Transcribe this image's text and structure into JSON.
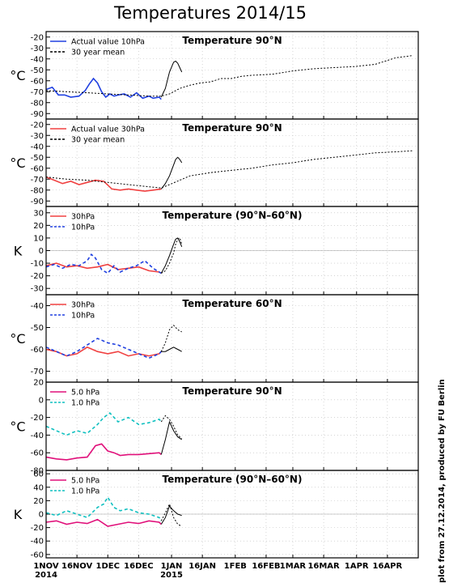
{
  "title": "Temperatures 2014/15",
  "credit": "plot from 27.12.2014, produced by FU Berlin",
  "x_ticks": [
    {
      "label": "1NOV",
      "day": 0
    },
    {
      "label": "16NOV",
      "day": 15
    },
    {
      "label": "1DEC",
      "day": 30
    },
    {
      "label": "16DEC",
      "day": 45
    },
    {
      "label": "1JAN",
      "day": 61
    },
    {
      "label": "16JAN",
      "day": 76
    },
    {
      "label": "1FEB",
      "day": 92
    },
    {
      "label": "16FEB",
      "day": 107
    },
    {
      "label": "1MAR",
      "day": 120
    },
    {
      "label": "16MAR",
      "day": 135
    },
    {
      "label": "1APR",
      "day": 151
    },
    {
      "label": "16APR",
      "day": 166
    }
  ],
  "x_year_labels": [
    {
      "label": "2014",
      "day": 0
    },
    {
      "label": "2015",
      "day": 61
    }
  ],
  "colors": {
    "blue": "#2040e0",
    "red": "#f04040",
    "magenta": "#e0107a",
    "cyan": "#10c0c0",
    "black": "#000000"
  },
  "chart_data": [
    {
      "type": "line",
      "title": "Temperature 90°N",
      "ylabel": "°C",
      "ylim": [
        -95,
        -15
      ],
      "yticks": [
        -90,
        -80,
        -70,
        -60,
        -50,
        -40,
        -30,
        -20
      ],
      "series": [
        {
          "name": "Actual value 10hPa",
          "color": "blue",
          "dash": "solid",
          "x": [
            0,
            3,
            6,
            9,
            12,
            16,
            19,
            21,
            23,
            25,
            27,
            29,
            31,
            33,
            35,
            38,
            41,
            44,
            47,
            50,
            52,
            55,
            56
          ],
          "y": [
            -68,
            -66,
            -73,
            -73,
            -75,
            -74,
            -69,
            -63,
            -58,
            -62,
            -70,
            -75,
            -72,
            -74,
            -73,
            -72,
            -75,
            -71,
            -76,
            -74,
            -76,
            -75,
            -77
          ]
        },
        {
          "name": "",
          "color": "black",
          "dash": "solid",
          "x": [
            56,
            58,
            60,
            62,
            63,
            64,
            65,
            66
          ],
          "y": [
            -75,
            -67,
            -52,
            -43,
            -42,
            -44,
            -48,
            -52
          ]
        },
        {
          "name": "30 year mean",
          "color": "black",
          "dash": "dashed",
          "x": [
            0,
            10,
            20,
            30,
            40,
            50,
            56,
            60,
            65,
            70,
            75,
            80,
            85,
            90,
            95,
            100,
            110,
            120,
            130,
            140,
            150,
            160,
            170,
            178
          ],
          "y": [
            -69,
            -70,
            -71,
            -72,
            -73,
            -74,
            -74,
            -72,
            -67,
            -64,
            -62,
            -61,
            -58,
            -58,
            -56,
            -55,
            -54,
            -51,
            -49,
            -48,
            -47,
            -45,
            -39,
            -37
          ]
        }
      ]
    },
    {
      "type": "line",
      "title": "Temperature 90°N",
      "ylabel": "°C",
      "ylim": [
        -95,
        -15
      ],
      "yticks": [
        -90,
        -80,
        -70,
        -60,
        -50,
        -40,
        -30,
        -20
      ],
      "series": [
        {
          "name": "Actual value 30hPa",
          "color": "red",
          "dash": "solid",
          "x": [
            0,
            4,
            8,
            12,
            16,
            20,
            24,
            28,
            32,
            36,
            40,
            44,
            48,
            52,
            56
          ],
          "y": [
            -68,
            -71,
            -74,
            -72,
            -75,
            -73,
            -71,
            -72,
            -79,
            -80,
            -79,
            -80,
            -81,
            -80,
            -79
          ]
        },
        {
          "name": "",
          "color": "black",
          "dash": "solid",
          "x": [
            56,
            58,
            60,
            62,
            63,
            64,
            65,
            66
          ],
          "y": [
            -79,
            -74,
            -67,
            -57,
            -52,
            -50,
            -52,
            -55
          ]
        },
        {
          "name": "30 year mean",
          "color": "black",
          "dash": "dashed",
          "x": [
            0,
            10,
            20,
            30,
            40,
            50,
            56,
            60,
            70,
            80,
            90,
            100,
            110,
            120,
            130,
            140,
            150,
            160,
            170,
            178
          ],
          "y": [
            -68,
            -70,
            -71,
            -73,
            -75,
            -77,
            -78,
            -75,
            -67,
            -64,
            -62,
            -60,
            -57,
            -55,
            -52,
            -50,
            -48,
            -46,
            -45,
            -44
          ]
        }
      ]
    },
    {
      "type": "line",
      "title": "Temperature (90°N–60°N)",
      "ylabel": "K",
      "ylim": [
        -35,
        35
      ],
      "yticks": [
        -30,
        -20,
        -10,
        0,
        10,
        20,
        30
      ],
      "zero_line": true,
      "series": [
        {
          "name": "30hPa",
          "color": "red",
          "dash": "solid",
          "x": [
            0,
            5,
            10,
            15,
            20,
            25,
            30,
            35,
            40,
            45,
            50,
            55,
            56
          ],
          "y": [
            -12,
            -10,
            -13,
            -12,
            -14,
            -13,
            -11,
            -15,
            -14,
            -13,
            -16,
            -17,
            -18
          ]
        },
        {
          "name": "10hPa",
          "color": "blue",
          "dash": "dashed",
          "x": [
            0,
            4,
            8,
            12,
            16,
            20,
            22,
            24,
            27,
            30,
            33,
            36,
            40,
            44,
            48,
            52,
            56
          ],
          "y": [
            -13,
            -11,
            -14,
            -11,
            -12,
            -8,
            -3,
            -6,
            -15,
            -18,
            -12,
            -17,
            -14,
            -12,
            -8,
            -14,
            -18
          ]
        },
        {
          "name": "",
          "color": "black",
          "dash": "solid",
          "x": [
            56,
            58,
            60,
            62,
            63,
            64,
            65,
            66
          ],
          "y": [
            -18,
            -12,
            -4,
            5,
            9,
            10,
            7,
            3
          ]
        },
        {
          "name": "",
          "color": "black",
          "dash": "dashed",
          "x": [
            56,
            58,
            60,
            62,
            63,
            64,
            65,
            66
          ],
          "y": [
            -18,
            -16,
            -10,
            -2,
            5,
            9,
            10,
            5
          ]
        }
      ]
    },
    {
      "type": "line",
      "title": "Temperature 60°N",
      "ylabel": "°C",
      "ylim": [
        -75,
        -35
      ],
      "yticks": [
        -70,
        -60,
        -50,
        -40
      ],
      "series": [
        {
          "name": "30hPa",
          "color": "red",
          "dash": "solid",
          "x": [
            0,
            5,
            10,
            15,
            20,
            25,
            30,
            35,
            40,
            45,
            50,
            55,
            56
          ],
          "y": [
            -60,
            -61,
            -63,
            -62,
            -59,
            -61,
            -62,
            -61,
            -63,
            -62,
            -63,
            -62,
            -61
          ]
        },
        {
          "name": "10hPa",
          "color": "blue",
          "dash": "dashed",
          "x": [
            0,
            5,
            10,
            15,
            20,
            25,
            30,
            35,
            40,
            45,
            50,
            55,
            56
          ],
          "y": [
            -59,
            -61,
            -63,
            -61,
            -58,
            -55,
            -57,
            -58,
            -60,
            -62,
            -64,
            -62,
            -61
          ]
        },
        {
          "name": "",
          "color": "black",
          "dash": "solid",
          "x": [
            56,
            58,
            60,
            62,
            64,
            66
          ],
          "y": [
            -61,
            -61,
            -60,
            -59,
            -60,
            -61
          ]
        },
        {
          "name": "",
          "color": "black",
          "dash": "dashed",
          "x": [
            56,
            58,
            60,
            62,
            64,
            66
          ],
          "y": [
            -61,
            -57,
            -51,
            -49,
            -51,
            -52
          ]
        }
      ]
    },
    {
      "type": "line",
      "title": "Temperature 90°N",
      "ylabel": "°C",
      "ylim": [
        -80,
        20
      ],
      "yticks": [
        -80,
        -60,
        -40,
        -20,
        0,
        20
      ],
      "series": [
        {
          "name": "5.0 hPa",
          "color": "magenta",
          "dash": "solid",
          "x": [
            0,
            5,
            10,
            15,
            20,
            24,
            27,
            30,
            33,
            36,
            40,
            45,
            50,
            55,
            56
          ],
          "y": [
            -65,
            -67,
            -68,
            -66,
            -65,
            -52,
            -50,
            -58,
            -60,
            -63,
            -62,
            -62,
            -61,
            -60,
            -62
          ]
        },
        {
          "name": "1.0 hPa",
          "color": "cyan",
          "dash": "dashed",
          "x": [
            0,
            5,
            10,
            15,
            20,
            25,
            28,
            31,
            35,
            40,
            45,
            50,
            55,
            56
          ],
          "y": [
            -30,
            -35,
            -40,
            -35,
            -38,
            -28,
            -20,
            -15,
            -25,
            -20,
            -28,
            -26,
            -22,
            -25
          ]
        },
        {
          "name": "",
          "color": "black",
          "dash": "solid",
          "x": [
            56,
            58,
            60,
            62,
            64,
            66
          ],
          "y": [
            -62,
            -45,
            -25,
            -35,
            -42,
            -45
          ]
        },
        {
          "name": "",
          "color": "black",
          "dash": "dashed",
          "x": [
            56,
            58,
            60,
            62,
            64,
            66
          ],
          "y": [
            -25,
            -18,
            -22,
            -30,
            -40,
            -44
          ]
        }
      ]
    },
    {
      "type": "line",
      "title": "Temperature (90°N–60°N)",
      "ylabel": "K",
      "ylim": [
        -65,
        65
      ],
      "yticks": [
        -60,
        -40,
        -20,
        0,
        20,
        40,
        60
      ],
      "zero_line": true,
      "series": [
        {
          "name": "5.0 hPa",
          "color": "magenta",
          "dash": "solid",
          "x": [
            0,
            5,
            10,
            15,
            20,
            25,
            30,
            35,
            40,
            45,
            50,
            55,
            56
          ],
          "y": [
            -12,
            -10,
            -15,
            -12,
            -14,
            -8,
            -18,
            -15,
            -12,
            -14,
            -10,
            -12,
            -15
          ]
        },
        {
          "name": "1.0 hPa",
          "color": "cyan",
          "dash": "dashed",
          "x": [
            0,
            5,
            10,
            15,
            20,
            25,
            28,
            30,
            33,
            36,
            40,
            45,
            50,
            55,
            56
          ],
          "y": [
            2,
            -2,
            5,
            0,
            -5,
            10,
            15,
            25,
            10,
            5,
            8,
            2,
            0,
            -5,
            -10
          ]
        },
        {
          "name": "",
          "color": "black",
          "dash": "solid",
          "x": [
            56,
            58,
            60,
            62,
            64,
            66
          ],
          "y": [
            -15,
            -5,
            12,
            5,
            0,
            -2
          ]
        },
        {
          "name": "",
          "color": "black",
          "dash": "dashed",
          "x": [
            56,
            58,
            60,
            62,
            64,
            66
          ],
          "y": [
            -10,
            2,
            15,
            -5,
            -15,
            -18
          ]
        }
      ]
    }
  ]
}
